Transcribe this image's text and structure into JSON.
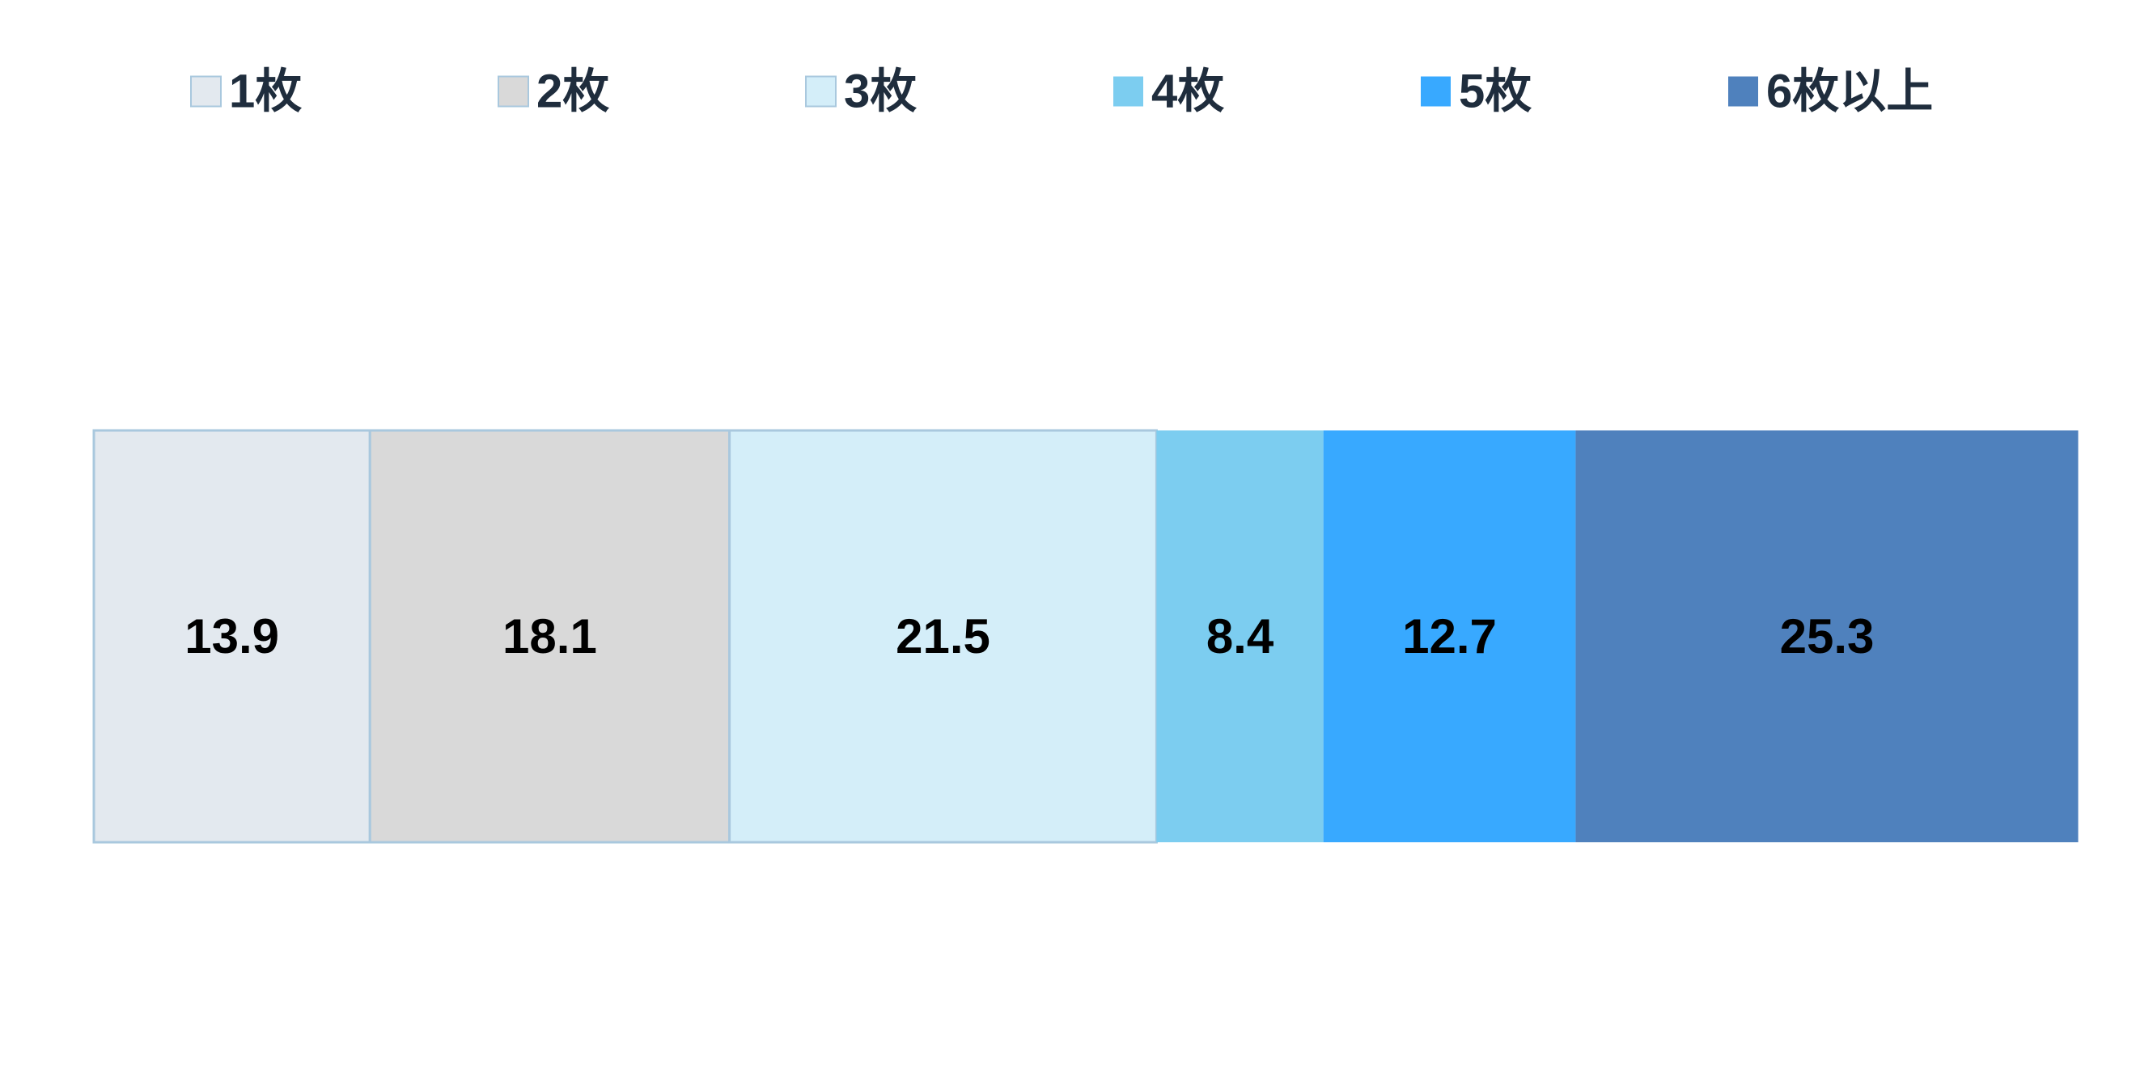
{
  "chart_data": {
    "type": "bar",
    "orientation": "horizontal",
    "stacked": true,
    "categories": [
      null
    ],
    "series": [
      {
        "name": "1枚",
        "color": "#e3e9ef",
        "edgecolor": "#a9c8de",
        "values": [
          13.9
        ]
      },
      {
        "name": "2枚",
        "color": "#d9d9d9",
        "edgecolor": "#a9c8de",
        "values": [
          18.1
        ]
      },
      {
        "name": "3枚",
        "color": "#d4eef9",
        "edgecolor": "#a9c8de",
        "values": [
          21.5
        ]
      },
      {
        "name": "4枚",
        "color": "#7ccdf0",
        "values": [
          8.4
        ]
      },
      {
        "name": "5枚",
        "color": "#38a9ff",
        "values": [
          12.7
        ]
      },
      {
        "name": "6枚以上",
        "color": "#4f81bd",
        "values": [
          25.3
        ]
      }
    ],
    "xlim": [
      0,
      100
    ],
    "legend": "top"
  }
}
